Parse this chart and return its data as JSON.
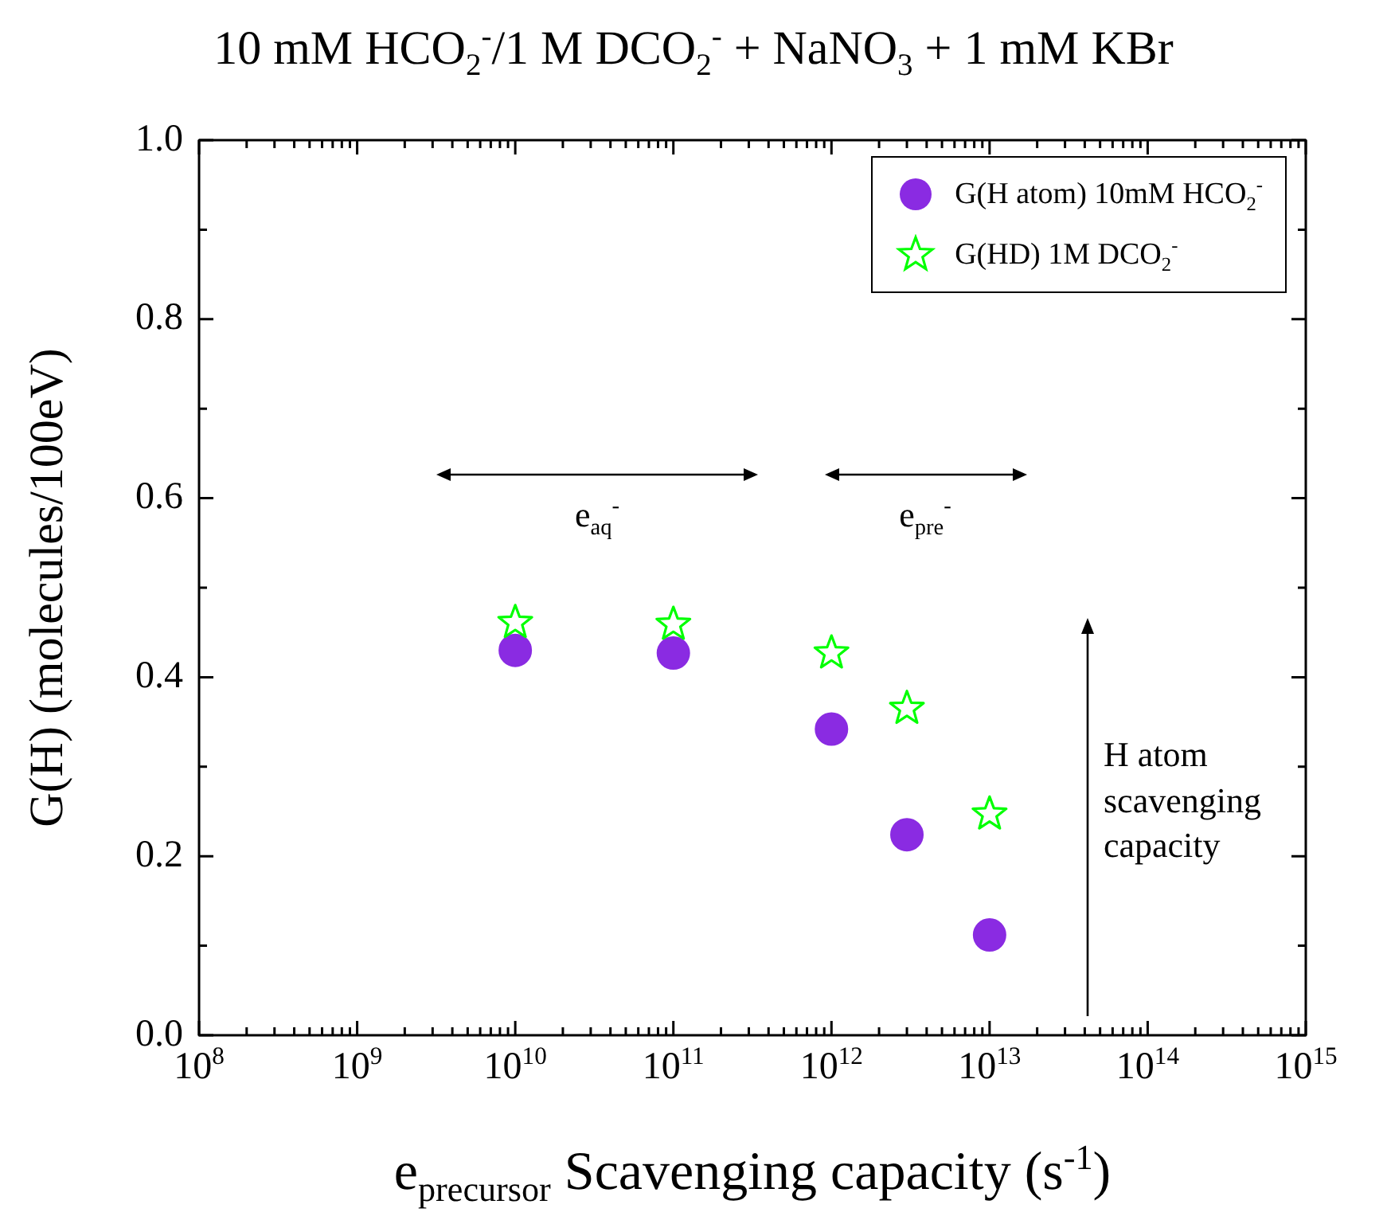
{
  "chart_data": {
    "type": "scatter",
    "title": "10 mM HCO$_{2}$$^{-}$/1 M DCO$_{2}$$^{-}$ + NaNO$_{3}$ + 1 mM KBr",
    "xlabel": "e$_{precursor}$ Scavenging capacity (s$^{-1}$)",
    "ylabel": "G(H) (molecules/100eV)",
    "log": "x",
    "xlim": [
      100000000.0,
      1000000000000000.0
    ],
    "ylim": [
      0,
      1
    ],
    "xticks": [
      {
        "value": 100000000.0,
        "label": "10$^{8}$"
      },
      {
        "value": 200000000.0,
        "label": null
      },
      {
        "value": 300000000.0,
        "label": null
      },
      {
        "value": 400000000.0,
        "label": null
      },
      {
        "value": 500000000.0,
        "label": null
      },
      {
        "value": 600000000.0,
        "label": null
      },
      {
        "value": 700000000.0,
        "label": null
      },
      {
        "value": 800000000.0,
        "label": null
      },
      {
        "value": 900000000.0,
        "label": null
      },
      {
        "value": 1000000000.0,
        "label": "10$^{9}$"
      },
      {
        "value": 2000000000.0,
        "label": null
      },
      {
        "value": 3000000000.0,
        "label": null
      },
      {
        "value": 4000000000.0,
        "label": null
      },
      {
        "value": 5000000000.0,
        "label": null
      },
      {
        "value": 6000000000.0,
        "label": null
      },
      {
        "value": 7000000000.0,
        "label": null
      },
      {
        "value": 8000000000.0,
        "label": null
      },
      {
        "value": 9000000000.0,
        "label": null
      },
      {
        "value": 10000000000.0,
        "label": "10$^{10}$"
      },
      {
        "value": 20000000000.0,
        "label": null
      },
      {
        "value": 30000000000.0,
        "label": null
      },
      {
        "value": 40000000000.0,
        "label": null
      },
      {
        "value": 50000000000.0,
        "label": null
      },
      {
        "value": 60000000000.0,
        "label": null
      },
      {
        "value": 70000000000.0,
        "label": null
      },
      {
        "value": 80000000000.0,
        "label": null
      },
      {
        "value": 90000000000.0,
        "label": null
      },
      {
        "value": 100000000000.0,
        "label": "10$^{11}$"
      },
      {
        "value": 200000000000.0,
        "label": null
      },
      {
        "value": 300000000000.0,
        "label": null
      },
      {
        "value": 400000000000.0,
        "label": null
      },
      {
        "value": 500000000000.0,
        "label": null
      },
      {
        "value": 600000000000.0,
        "label": null
      },
      {
        "value": 700000000000.0,
        "label": null
      },
      {
        "value": 800000000000.0,
        "label": null
      },
      {
        "value": 900000000000.0,
        "label": null
      },
      {
        "value": 1000000000000.0,
        "label": "10$^{12}$"
      },
      {
        "value": 2000000000000.0,
        "label": null
      },
      {
        "value": 3000000000000.0,
        "label": null
      },
      {
        "value": 4000000000000.0,
        "label": null
      },
      {
        "value": 5000000000000.0,
        "label": null
      },
      {
        "value": 6000000000000.0,
        "label": null
      },
      {
        "value": 7000000000000.0,
        "label": null
      },
      {
        "value": 8000000000000.0,
        "label": null
      },
      {
        "value": 9000000000000.0,
        "label": null
      },
      {
        "value": 10000000000000.0,
        "label": "10$^{13}$"
      },
      {
        "value": 20000000000000.0,
        "label": null
      },
      {
        "value": 30000000000000.0,
        "label": null
      },
      {
        "value": 40000000000000.0,
        "label": null
      },
      {
        "value": 50000000000000.0,
        "label": null
      },
      {
        "value": 60000000000000.0,
        "label": null
      },
      {
        "value": 70000000000000.0,
        "label": null
      },
      {
        "value": 80000000000000.0,
        "label": null
      },
      {
        "value": 90000000000000.0,
        "label": null
      },
      {
        "value": 100000000000000.0,
        "label": "10$^{14}$"
      },
      {
        "value": 200000000000000.0,
        "label": null
      },
      {
        "value": 300000000000000.0,
        "label": null
      },
      {
        "value": 400000000000000.0,
        "label": null
      },
      {
        "value": 500000000000000.0,
        "label": null
      },
      {
        "value": 600000000000000.0,
        "label": null
      },
      {
        "value": 700000000000000.0,
        "label": null
      },
      {
        "value": 800000000000000.0,
        "label": null
      },
      {
        "value": 900000000000000.0,
        "label": null
      },
      {
        "value": 1000000000000000.0,
        "label": "10$^{15}$"
      }
    ],
    "yticks": [
      {
        "value": 0,
        "label": "0.0"
      },
      {
        "value": 0.1,
        "label": null
      },
      {
        "value": 0.2,
        "label": "0.2"
      },
      {
        "value": 0.3,
        "label": null
      },
      {
        "value": 0.4,
        "label": "0.4"
      },
      {
        "value": 0.5,
        "label": null
      },
      {
        "value": 0.6,
        "label": "0.6"
      },
      {
        "value": 0.7,
        "label": null
      },
      {
        "value": 0.8,
        "label": "0.8"
      },
      {
        "value": 0.9,
        "label": null
      },
      {
        "value": 1,
        "label": "1.0"
      }
    ],
    "legend": "top right",
    "grid": false,
    "series": [
      {
        "name": "G(H atom) 10mM HCO$_{2}$$^{-}$",
        "color": "#8a2be2",
        "marker": "circle",
        "x": [
          10000000000.0,
          100000000000.0,
          1000000000000.0,
          3000000000000.0,
          10000000000000.0
        ],
        "values": [
          0.43,
          0.427,
          0.342,
          0.224,
          0.112
        ]
      },
      {
        "name": "G(HD) 1M DCO$_{2}$$^{-}$",
        "color": "#00ff00",
        "marker": "star",
        "x": [
          10000000000.0,
          100000000000.0,
          1000000000000.0,
          3000000000000.0,
          10000000000000.0
        ],
        "values": [
          0.461,
          0.459,
          0.427,
          0.365,
          0.247
        ]
      }
    ],
    "annotations": [
      "e$_{aq}$$^{-}$",
      "e$_{pre}$$^{-}$",
      "H atom scavenging capacity"
    ]
  }
}
